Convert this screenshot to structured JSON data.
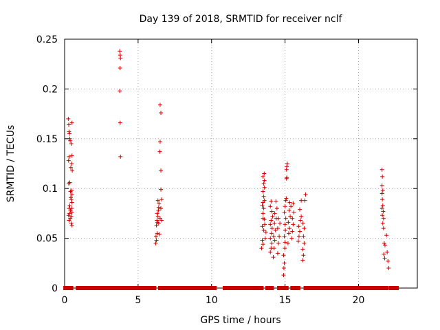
{
  "chart_data": {
    "type": "scatter",
    "title": "Day 139 of 2018, SRMTID for receiver nclf",
    "xlabel": "GPS time / hours",
    "ylabel": "SRMTID / TECUs",
    "xlim": [
      0,
      24
    ],
    "ylim": [
      0,
      0.25
    ],
    "xticks": [
      "0",
      "5",
      "10",
      "15",
      "20"
    ],
    "yticks": [
      "0",
      "0.05",
      "0.1",
      "0.15",
      "0.2",
      "0.25"
    ],
    "grid": true,
    "marker": "+",
    "color": "#cc0000",
    "series": [
      {
        "name": "SRMTID",
        "points": [
          [
            0.25,
            0.17
          ],
          [
            0.28,
            0.164
          ],
          [
            0.3,
            0.157
          ],
          [
            0.33,
            0.155
          ],
          [
            0.35,
            0.15
          ],
          [
            0.38,
            0.148
          ],
          [
            0.3,
            0.132
          ],
          [
            0.27,
            0.128
          ],
          [
            0.35,
            0.106
          ],
          [
            0.28,
            0.105
          ],
          [
            0.4,
            0.097
          ],
          [
            0.42,
            0.091
          ],
          [
            0.35,
            0.083
          ],
          [
            0.3,
            0.08
          ],
          [
            0.4,
            0.078
          ],
          [
            0.33,
            0.075
          ],
          [
            0.27,
            0.073
          ],
          [
            0.38,
            0.07
          ],
          [
            0.3,
            0.068
          ],
          [
            0.45,
            0.065
          ],
          [
            0.5,
            0.166
          ],
          [
            0.45,
            0.145
          ],
          [
            0.5,
            0.133
          ],
          [
            0.48,
            0.125
          ],
          [
            0.42,
            0.121
          ],
          [
            0.52,
            0.118
          ],
          [
            0.48,
            0.098
          ],
          [
            0.5,
            0.094
          ],
          [
            0.45,
            0.089
          ],
          [
            0.5,
            0.086
          ],
          [
            0.48,
            0.08
          ],
          [
            0.5,
            0.076
          ],
          [
            0.45,
            0.072
          ],
          [
            0.5,
            0.063
          ],
          [
            3.75,
            0.238
          ],
          [
            3.78,
            0.234
          ],
          [
            3.8,
            0.231
          ],
          [
            3.77,
            0.221
          ],
          [
            3.75,
            0.198
          ],
          [
            3.78,
            0.166
          ],
          [
            3.8,
            0.132
          ],
          [
            6.2,
            0.045
          ],
          [
            6.25,
            0.048
          ],
          [
            6.22,
            0.052
          ],
          [
            6.3,
            0.055
          ],
          [
            6.25,
            0.063
          ],
          [
            6.32,
            0.066
          ],
          [
            6.28,
            0.068
          ],
          [
            6.35,
            0.072
          ],
          [
            6.3,
            0.075
          ],
          [
            6.38,
            0.078
          ],
          [
            6.4,
            0.081
          ],
          [
            6.42,
            0.085
          ],
          [
            6.35,
            0.088
          ],
          [
            6.45,
            0.054
          ],
          [
            6.4,
            0.065
          ],
          [
            6.5,
            0.184
          ],
          [
            6.55,
            0.176
          ],
          [
            6.5,
            0.147
          ],
          [
            6.48,
            0.137
          ],
          [
            6.55,
            0.118
          ],
          [
            6.55,
            0.099
          ],
          [
            6.6,
            0.089
          ],
          [
            6.55,
            0.08
          ],
          [
            6.5,
            0.07
          ],
          [
            6.6,
            0.068
          ],
          [
            13.4,
            0.04
          ],
          [
            13.45,
            0.048
          ],
          [
            13.5,
            0.044
          ],
          [
            13.55,
            0.058
          ],
          [
            13.45,
            0.062
          ],
          [
            13.5,
            0.07
          ],
          [
            13.6,
            0.069
          ],
          [
            13.5,
            0.075
          ],
          [
            13.55,
            0.08
          ],
          [
            13.45,
            0.083
          ],
          [
            13.5,
            0.086
          ],
          [
            13.6,
            0.088
          ],
          [
            13.55,
            0.092
          ],
          [
            13.5,
            0.097
          ],
          [
            13.6,
            0.101
          ],
          [
            13.55,
            0.105
          ],
          [
            13.6,
            0.108
          ],
          [
            13.5,
            0.112
          ],
          [
            13.58,
            0.115
          ],
          [
            13.65,
            0.05
          ],
          [
            13.7,
            0.056
          ],
          [
            13.62,
            0.064
          ],
          [
            14.0,
            0.036
          ],
          [
            14.05,
            0.04
          ],
          [
            14.1,
            0.045
          ],
          [
            14.0,
            0.05
          ],
          [
            14.08,
            0.055
          ],
          [
            14.12,
            0.06
          ],
          [
            14.0,
            0.064
          ],
          [
            14.05,
            0.068
          ],
          [
            14.15,
            0.072
          ],
          [
            14.1,
            0.077
          ],
          [
            14.0,
            0.082
          ],
          [
            14.05,
            0.087
          ],
          [
            14.2,
            0.031
          ],
          [
            14.25,
            0.04
          ],
          [
            14.3,
            0.048
          ],
          [
            14.22,
            0.052
          ],
          [
            14.35,
            0.058
          ],
          [
            14.28,
            0.065
          ],
          [
            14.4,
            0.07
          ],
          [
            14.3,
            0.075
          ],
          [
            14.45,
            0.08
          ],
          [
            14.38,
            0.087
          ],
          [
            14.5,
            0.035
          ],
          [
            14.55,
            0.045
          ],
          [
            14.6,
            0.052
          ],
          [
            14.5,
            0.06
          ],
          [
            14.65,
            0.065
          ],
          [
            14.55,
            0.07
          ],
          [
            14.9,
            0.013
          ],
          [
            14.92,
            0.02
          ],
          [
            14.95,
            0.025
          ],
          [
            14.9,
            0.033
          ],
          [
            14.98,
            0.04
          ],
          [
            15.0,
            0.046
          ],
          [
            14.95,
            0.052
          ],
          [
            15.02,
            0.058
          ],
          [
            15.0,
            0.064
          ],
          [
            15.05,
            0.07
          ],
          [
            14.95,
            0.076
          ],
          [
            15.0,
            0.082
          ],
          [
            15.05,
            0.088
          ],
          [
            15.08,
            0.09
          ],
          [
            15.1,
            0.11
          ],
          [
            15.12,
            0.111
          ],
          [
            15.1,
            0.119
          ],
          [
            15.12,
            0.122
          ],
          [
            15.15,
            0.125
          ],
          [
            15.2,
            0.045
          ],
          [
            15.25,
            0.055
          ],
          [
            15.3,
            0.06
          ],
          [
            15.22,
            0.066
          ],
          [
            15.35,
            0.072
          ],
          [
            15.28,
            0.078
          ],
          [
            15.4,
            0.082
          ],
          [
            15.32,
            0.086
          ],
          [
            15.45,
            0.05
          ],
          [
            15.5,
            0.057
          ],
          [
            15.55,
            0.064
          ],
          [
            15.5,
            0.07
          ],
          [
            15.6,
            0.076
          ],
          [
            15.55,
            0.085
          ],
          [
            15.9,
            0.047
          ],
          [
            15.95,
            0.052
          ],
          [
            16.0,
            0.057
          ],
          [
            15.92,
            0.062
          ],
          [
            16.05,
            0.068
          ],
          [
            16.1,
            0.072
          ],
          [
            16.0,
            0.079
          ],
          [
            16.1,
            0.088
          ],
          [
            16.2,
            0.028
          ],
          [
            16.25,
            0.033
          ],
          [
            16.2,
            0.039
          ],
          [
            16.3,
            0.045
          ],
          [
            16.25,
            0.052
          ],
          [
            16.3,
            0.06
          ],
          [
            16.22,
            0.065
          ],
          [
            16.35,
            0.088
          ],
          [
            16.4,
            0.094
          ],
          [
            21.6,
            0.119
          ],
          [
            21.62,
            0.112
          ],
          [
            21.6,
            0.103
          ],
          [
            21.65,
            0.098
          ],
          [
            21.6,
            0.095
          ],
          [
            21.62,
            0.089
          ],
          [
            21.65,
            0.083
          ],
          [
            21.6,
            0.08
          ],
          [
            21.68,
            0.077
          ],
          [
            21.62,
            0.073
          ],
          [
            21.7,
            0.07
          ],
          [
            21.65,
            0.065
          ],
          [
            21.7,
            0.06
          ],
          [
            21.75,
            0.045
          ],
          [
            21.8,
            0.043
          ],
          [
            21.72,
            0.034
          ],
          [
            21.78,
            0.03
          ],
          [
            21.9,
            0.053
          ],
          [
            21.95,
            0.036
          ],
          [
            22.0,
            0.027
          ],
          [
            22.05,
            0.02
          ]
        ]
      }
    ],
    "zero_band_segments": [
      [
        0.05,
        0.45
      ],
      [
        0.9,
        6.1
      ],
      [
        6.5,
        10.2
      ],
      [
        10.9,
        13.4
      ],
      [
        13.8,
        14.1
      ],
      [
        14.6,
        15.1
      ],
      [
        15.5,
        15.9
      ],
      [
        16.4,
        21.9
      ],
      [
        22.2,
        22.6
      ]
    ]
  }
}
